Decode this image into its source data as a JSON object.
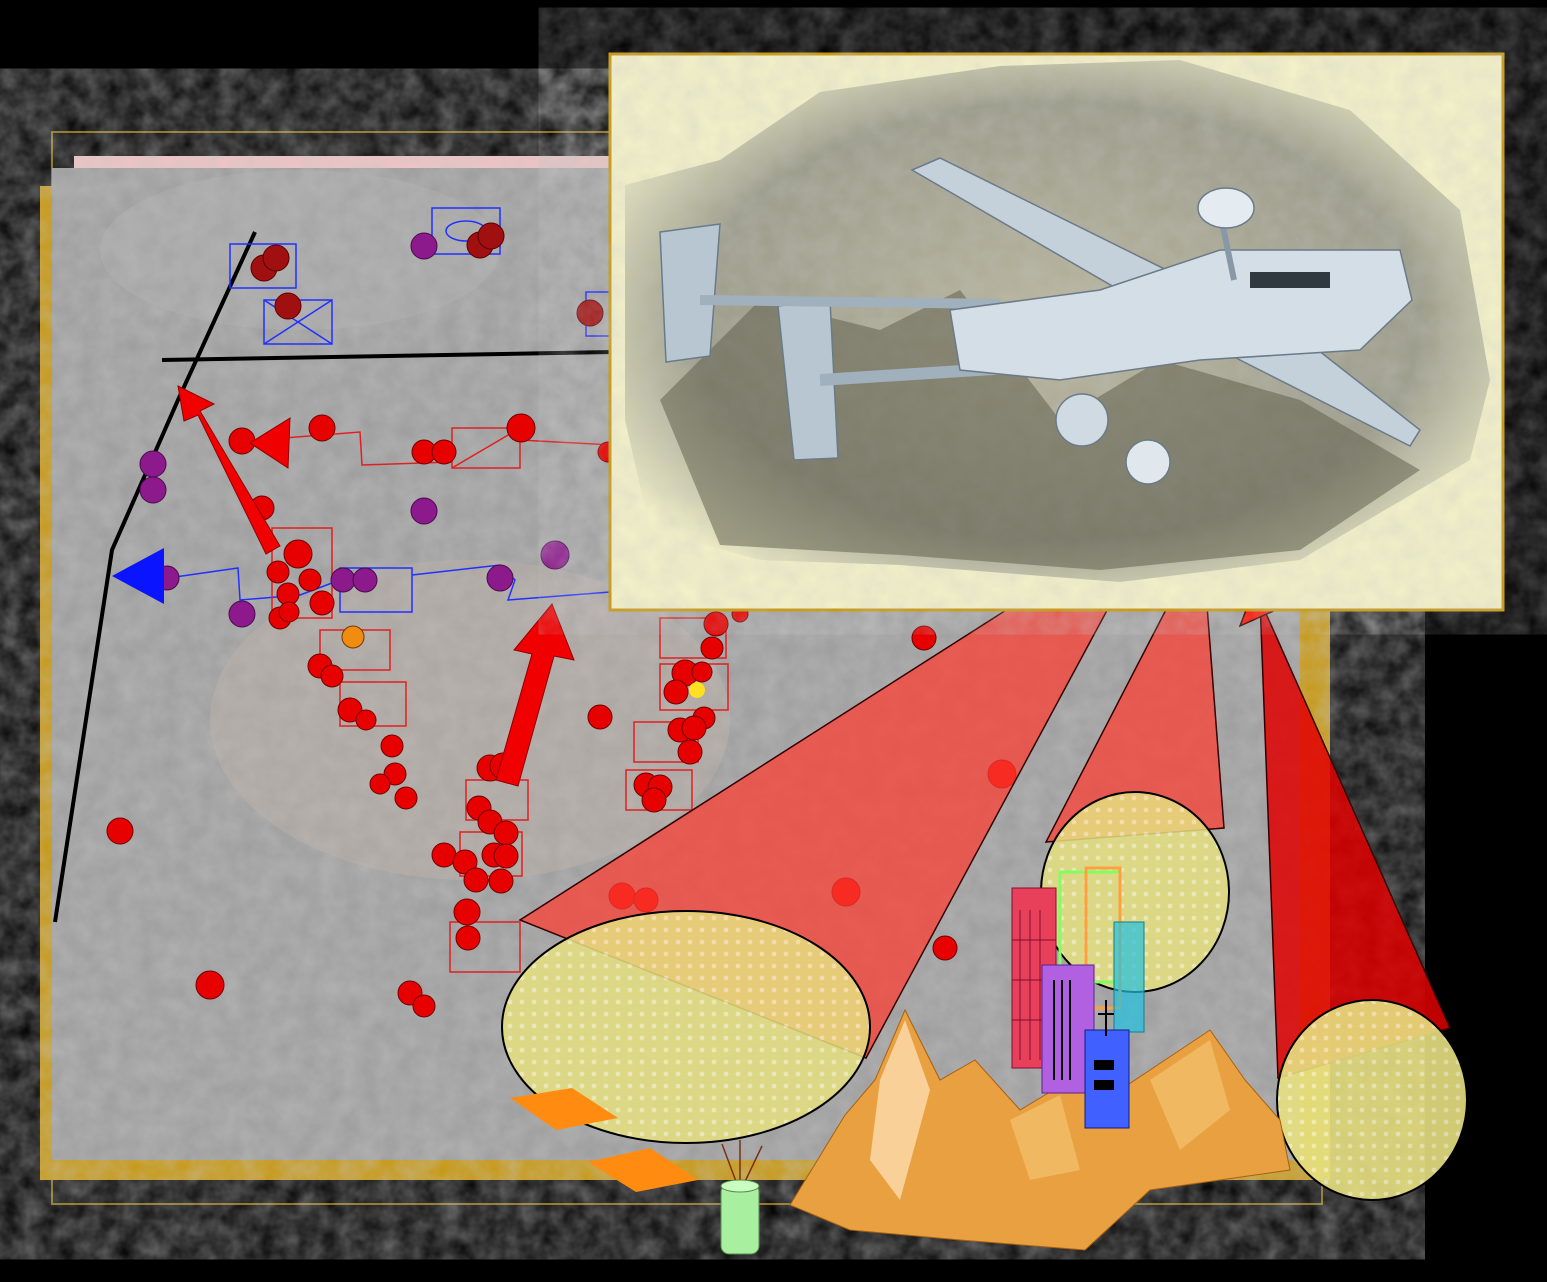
{
  "palette": {
    "background": "#000000",
    "map_frame": "#c8960a",
    "map_terrain": "#9c9c9c",
    "track_marker": "#e60000",
    "hostile_marker": "#8c1a8c",
    "friendly_arrow": "#0a14ff",
    "sensor_beam": "#ff3b30",
    "sensor_footprint": "#e6e080",
    "photo_frame": "#f5f3c8",
    "mountain": "#e8a040",
    "ground_station": "#a8f0a0"
  },
  "icons": {
    "uav": "uav-icon",
    "ground_station": "ground-station-icon",
    "buildings": "city-buildings-icon",
    "mountains": "mountain-range-icon",
    "antenna_panel": "antenna-panel-icon"
  },
  "sensor_footprints": 3
}
